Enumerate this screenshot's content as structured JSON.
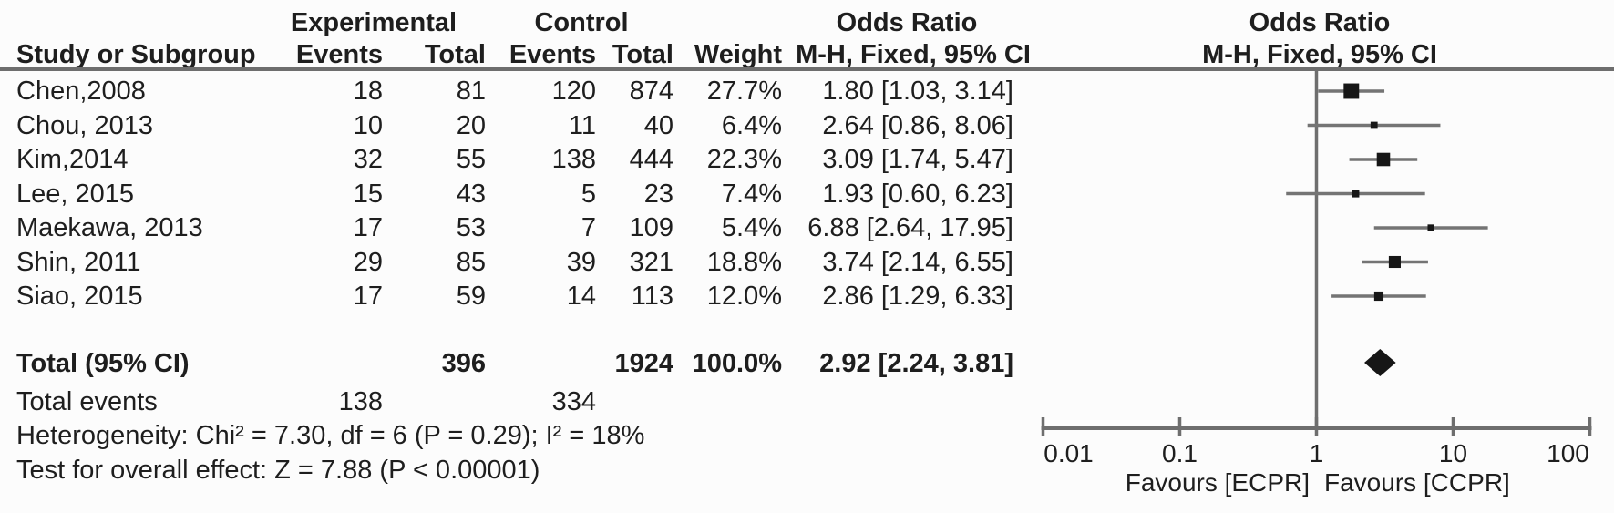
{
  "chart_data": {
    "type": "forest",
    "effect_measure": "Odds Ratio",
    "header": {
      "group1": "Experimental",
      "group2": "Control",
      "study": "Study or Subgroup",
      "events": "Events",
      "total": "Total",
      "weight": "Weight",
      "or_title_text_col": "Odds Ratio",
      "method_text_col": "M-H, Fixed, 95% CI",
      "or_title_plot_col": "Odds Ratio",
      "method_plot_col": "M-H, Fixed, 95% CI"
    },
    "studies": [
      {
        "name": "Chen,2008",
        "exp_events": "18",
        "exp_total": "81",
        "ctrl_events": "120",
        "ctrl_total": "874",
        "weight": "27.7%",
        "weight_pct": 27.7,
        "or": 1.8,
        "ci_low": 1.03,
        "ci_high": 3.14,
        "or_text": "1.80 [1.03, 3.14]"
      },
      {
        "name": "Chou, 2013",
        "exp_events": "10",
        "exp_total": "20",
        "ctrl_events": "11",
        "ctrl_total": "40",
        "weight": "6.4%",
        "weight_pct": 6.4,
        "or": 2.64,
        "ci_low": 0.86,
        "ci_high": 8.06,
        "or_text": "2.64 [0.86, 8.06]"
      },
      {
        "name": "Kim,2014",
        "exp_events": "32",
        "exp_total": "55",
        "ctrl_events": "138",
        "ctrl_total": "444",
        "weight": "22.3%",
        "weight_pct": 22.3,
        "or": 3.09,
        "ci_low": 1.74,
        "ci_high": 5.47,
        "or_text": "3.09 [1.74, 5.47]"
      },
      {
        "name": "Lee, 2015",
        "exp_events": "15",
        "exp_total": "43",
        "ctrl_events": "5",
        "ctrl_total": "23",
        "weight": "7.4%",
        "weight_pct": 7.4,
        "or": 1.93,
        "ci_low": 0.6,
        "ci_high": 6.23,
        "or_text": "1.93 [0.60, 6.23]"
      },
      {
        "name": "Maekawa, 2013",
        "exp_events": "17",
        "exp_total": "53",
        "ctrl_events": "7",
        "ctrl_total": "109",
        "weight": "5.4%",
        "weight_pct": 5.4,
        "or": 6.88,
        "ci_low": 2.64,
        "ci_high": 17.95,
        "or_text": "6.88 [2.64, 17.95]"
      },
      {
        "name": "Shin, 2011",
        "exp_events": "29",
        "exp_total": "85",
        "ctrl_events": "39",
        "ctrl_total": "321",
        "weight": "18.8%",
        "weight_pct": 18.8,
        "or": 3.74,
        "ci_low": 2.14,
        "ci_high": 6.55,
        "or_text": "3.74 [2.14, 6.55]"
      },
      {
        "name": "Siao, 2015",
        "exp_events": "17",
        "exp_total": "59",
        "ctrl_events": "14",
        "ctrl_total": "113",
        "weight": "12.0%",
        "weight_pct": 12.0,
        "or": 2.86,
        "ci_low": 1.29,
        "ci_high": 6.33,
        "or_text": "2.86 [1.29, 6.33]"
      }
    ],
    "total": {
      "label": "Total (95% CI)",
      "exp_total": "396",
      "ctrl_total": "1924",
      "weight": "100.0%",
      "or": 2.92,
      "ci_low": 2.24,
      "ci_high": 3.81,
      "or_text": "2.92 [2.24, 3.81]"
    },
    "total_events": {
      "label": "Total events",
      "exp": "138",
      "ctrl": "334"
    },
    "footnotes": {
      "heterogeneity": "Heterogeneity: Chi² = 7.30, df = 6 (P = 0.29); I² = 18%",
      "overall_effect": "Test for overall effect: Z = 7.88 (P < 0.00001)"
    },
    "axis": {
      "scale": "log",
      "ticks": [
        0.01,
        0.1,
        1,
        10,
        100
      ],
      "tick_labels": [
        "0.01",
        "0.1",
        "1",
        "10",
        "100"
      ],
      "left_label": "Favours [ECPR]",
      "right_label": "Favours [CCPR]"
    },
    "colors": {
      "marker": "#161616",
      "ci_line": "#747474",
      "axis_line": "#6e6e6e",
      "text": "#1e1e1e"
    }
  }
}
